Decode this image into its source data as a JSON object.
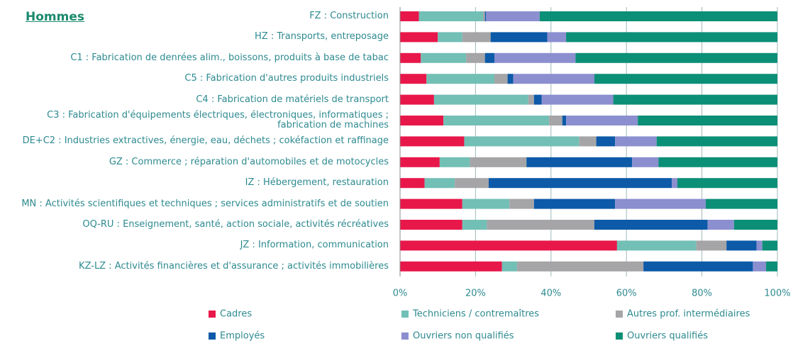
{
  "chart_data": {
    "type": "stacked-bar-horizontal",
    "title": "Hommes",
    "categories": [
      "FZ : Construction",
      "HZ : Transports, entreposage",
      "C1 : Fabrication de denrées alim., boissons, produits à base de tabac",
      "C5 : Fabrication d'autres produits industriels",
      "C4 : Fabrication de matériels de transport",
      "C3 : Fabrication d'équipements électriques, électroniques, informatiques  ;\nfabrication de machines",
      "DE+C2 : Industries extractives, énergie, eau, déchets ; cokéfaction et raffinage",
      "GZ : Commerce ; réparation d'automobiles et de motocycles",
      "IZ : Hébergement, restauration",
      "MN : Activités scientifiques et techniques ; services administratifs et de soutien",
      "OQ-RU : Enseignement, santé, action sociale, activités récréatives",
      "JZ : Information, communication",
      "KZ-LZ : Activités financières et d'assurance ; activités immobilières"
    ],
    "series": [
      {
        "name": "Cadres",
        "color": "#e8174a",
        "values": [
          5,
          10,
          5.5,
          7,
          9,
          11.5,
          17,
          10.5,
          6.5,
          16.5,
          16.5,
          57.5,
          27
        ]
      },
      {
        "name": "Techniciens / contremaîtres",
        "color": "#72bfb6",
        "values": [
          17,
          6.5,
          12,
          18,
          25,
          28,
          30.5,
          8,
          8,
          12.5,
          6.5,
          21,
          4
        ]
      },
      {
        "name": "Autres prof. intermédiaires",
        "color": "#a5a5a7",
        "values": [
          0.5,
          7.5,
          5,
          3.5,
          1.5,
          3.5,
          4.5,
          15,
          9,
          6.5,
          28.5,
          8,
          33.5
        ]
      },
      {
        "name": "Employés",
        "color": "#0d5aa8",
        "values": [
          0.3,
          15,
          2.5,
          1.5,
          2,
          1,
          5,
          28,
          48.5,
          21.5,
          30,
          8,
          29
        ]
      },
      {
        "name": "Ouvriers non qualifiés",
        "color": "#8b8fd0",
        "values": [
          14.2,
          5,
          21.5,
          21.5,
          19,
          19,
          11,
          7,
          1.5,
          24,
          7,
          1.5,
          3.5
        ]
      },
      {
        "name": "Ouvriers qualifiés",
        "color": "#0c8f77",
        "values": [
          63,
          56,
          53.5,
          48.5,
          43.5,
          37,
          32,
          31.5,
          26.5,
          19,
          11.5,
          4,
          3
        ]
      }
    ],
    "xlim": [
      0,
      100
    ],
    "xticks": [
      {
        "value": 0,
        "label": "0%"
      },
      {
        "value": 20,
        "label": "20%"
      },
      {
        "value": 40,
        "label": "40%"
      },
      {
        "value": 60,
        "label": "60%"
      },
      {
        "value": 80,
        "label": "80%"
      },
      {
        "value": 100,
        "label": "100%"
      }
    ],
    "grid": true
  }
}
